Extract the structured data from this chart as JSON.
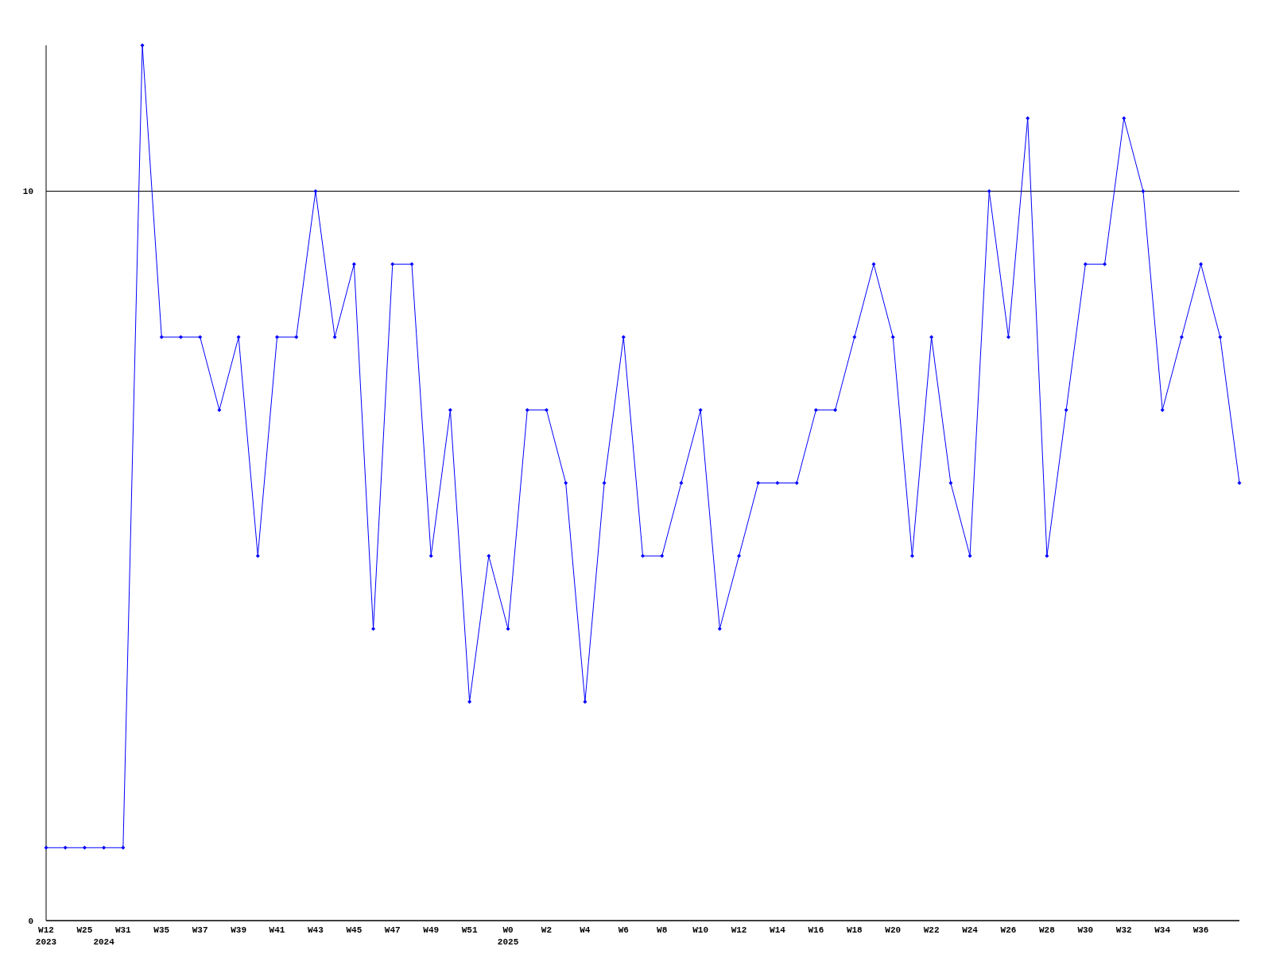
{
  "chart_data": {
    "type": "line",
    "categories": [
      "W12\n2023",
      null,
      "W25",
      "\n2024",
      "W31",
      null,
      "W35",
      null,
      "W37",
      null,
      "W39",
      null,
      "W41",
      null,
      "W43",
      null,
      "W45",
      null,
      "W47",
      null,
      "W49",
      null,
      "W51",
      null,
      "W0\n2025",
      null,
      "W2",
      null,
      "W4",
      null,
      "W6",
      null,
      "W8",
      null,
      "W10",
      null,
      "W12",
      null,
      "W14",
      null,
      "W16",
      null,
      "W18",
      null,
      "W20",
      null,
      "W22",
      null,
      "W24",
      null,
      "W26",
      null,
      "W28",
      null,
      "W30",
      null,
      "W32",
      null,
      "W34",
      null,
      "W36",
      null,
      null
    ],
    "series": [
      {
        "color": "#0000ff",
        "values": [
          1,
          1,
          1,
          1,
          1,
          12,
          8,
          8,
          8,
          7,
          8,
          5,
          8,
          8,
          10,
          8,
          9,
          4,
          9,
          9,
          5,
          7,
          3,
          5,
          4,
          7,
          7,
          6,
          3,
          6,
          8,
          5,
          5,
          6,
          7,
          4,
          5,
          6,
          6,
          6,
          7,
          7,
          8,
          9,
          8,
          5,
          8,
          6,
          5,
          10,
          8,
          11,
          5,
          7,
          9,
          9,
          11,
          10,
          7,
          8,
          9,
          8,
          6
        ]
      }
    ],
    "ylim": [
      0,
      12
    ],
    "yticks": [
      0,
      10
    ],
    "grid": "y",
    "marker": "diamond"
  }
}
